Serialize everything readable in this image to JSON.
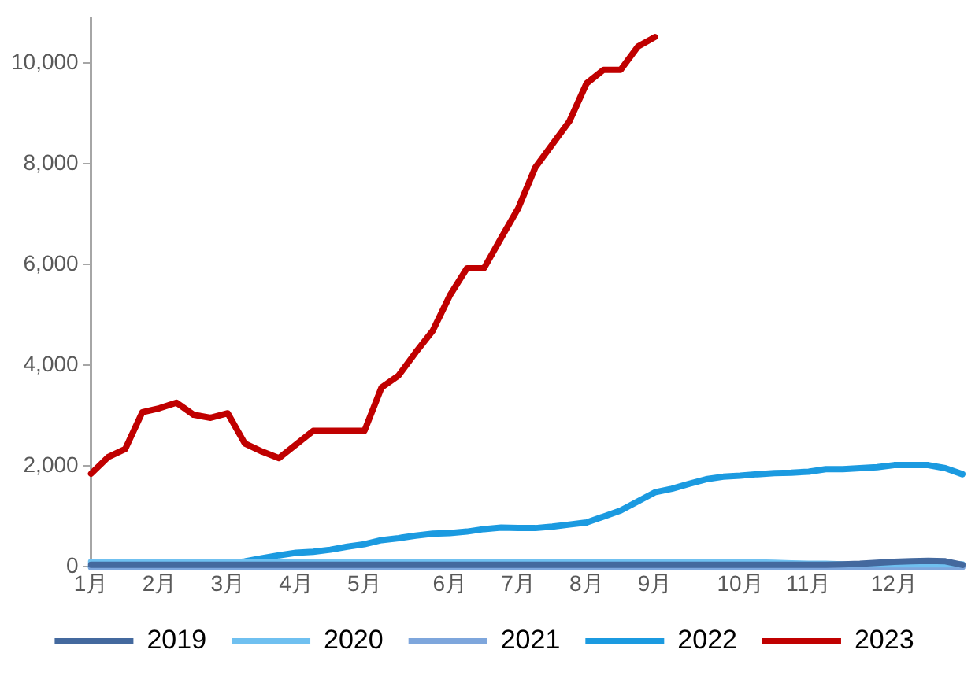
{
  "chart_data": {
    "type": "line",
    "categories": [
      "1月",
      null,
      null,
      null,
      "2月",
      null,
      null,
      null,
      "3月",
      null,
      null,
      null,
      "4月",
      null,
      null,
      null,
      "5月",
      null,
      null,
      null,
      null,
      "6月",
      null,
      null,
      null,
      "7月",
      null,
      null,
      null,
      "8月",
      null,
      null,
      null,
      "9月",
      null,
      null,
      null,
      null,
      "10月",
      null,
      null,
      null,
      "11月",
      null,
      null,
      null,
      null,
      "12月",
      null,
      null,
      null,
      null
    ],
    "ylim": [
      0,
      10900
    ],
    "yticks": [
      {
        "value": 0,
        "label": "0"
      },
      {
        "value": 2000,
        "label": "2,000"
      },
      {
        "value": 4000,
        "label": "4,000"
      },
      {
        "value": 6000,
        "label": "6,000"
      },
      {
        "value": 8000,
        "label": "8,000"
      },
      {
        "value": 10000,
        "label": "10,000"
      }
    ],
    "series": [
      {
        "name": "2019",
        "color": "#44699e",
        "values": [
          40,
          40,
          40,
          40,
          40,
          40,
          40,
          40,
          40,
          40,
          40,
          40,
          40,
          40,
          40,
          40,
          40,
          40,
          40,
          40,
          40,
          40,
          40,
          40,
          40,
          40,
          40,
          40,
          40,
          40,
          40,
          40,
          40,
          40,
          40,
          40,
          40,
          40,
          40,
          40,
          40,
          40,
          40,
          40,
          50,
          60,
          80,
          100,
          110,
          120,
          110,
          40
        ]
      },
      {
        "name": "2020",
        "color": "#6fc0f0",
        "values": [
          100,
          100,
          100,
          100,
          100,
          100,
          100,
          100,
          100,
          100,
          100,
          100,
          100,
          100,
          100,
          100,
          100,
          100,
          100,
          100,
          100,
          100,
          100,
          100,
          100,
          100,
          100,
          100,
          100,
          100,
          100,
          100,
          100,
          100,
          100,
          100,
          100,
          100,
          100,
          90,
          80,
          70,
          60,
          60,
          50,
          50,
          50,
          50,
          50,
          50,
          50,
          50
        ]
      },
      {
        "name": "2021",
        "color": "#7ea6dc",
        "values": [
          0,
          0,
          0,
          0,
          0,
          0,
          0,
          0,
          0,
          0,
          0,
          0,
          0,
          0,
          0,
          0,
          0,
          0,
          0,
          0,
          0,
          0,
          0,
          0,
          0,
          0,
          0,
          0,
          0,
          0,
          0,
          0,
          0,
          0,
          0,
          0,
          0,
          0,
          0,
          0,
          0,
          0,
          0,
          0,
          0,
          0,
          0,
          0,
          0,
          0,
          0,
          0
        ]
      },
      {
        "name": "2022",
        "color": "#1b9ae0",
        "values": [
          0,
          0,
          0,
          0,
          0,
          0,
          0,
          20,
          60,
          110,
          170,
          230,
          280,
          300,
          340,
          400,
          450,
          530,
          570,
          620,
          660,
          670,
          700,
          750,
          780,
          770,
          770,
          800,
          840,
          880,
          1000,
          1120,
          1300,
          1480,
          1550,
          1650,
          1740,
          1790,
          1810,
          1840,
          1860,
          1870,
          1890,
          1940,
          1940,
          1960,
          1980,
          2020,
          2020,
          2020,
          1960,
          1840
        ]
      },
      {
        "name": "2023",
        "color": "#c00000",
        "values": [
          1850,
          2180,
          2340,
          3070,
          3150,
          3260,
          3020,
          2960,
          3050,
          2450,
          2290,
          2160,
          2430,
          2700,
          2700,
          2700,
          2700,
          3560,
          3800,
          4260,
          4690,
          5390,
          5930,
          5930,
          6530,
          7120,
          7930,
          8390,
          8850,
          9600,
          9870,
          9870,
          10330,
          10520,
          null,
          null,
          null,
          null,
          null,
          null,
          null,
          null,
          null,
          null,
          null,
          null,
          null,
          null,
          null,
          null,
          null,
          null
        ]
      }
    ],
    "legend": "bottom",
    "grid": false,
    "marker": "none",
    "line_style": "solid"
  }
}
